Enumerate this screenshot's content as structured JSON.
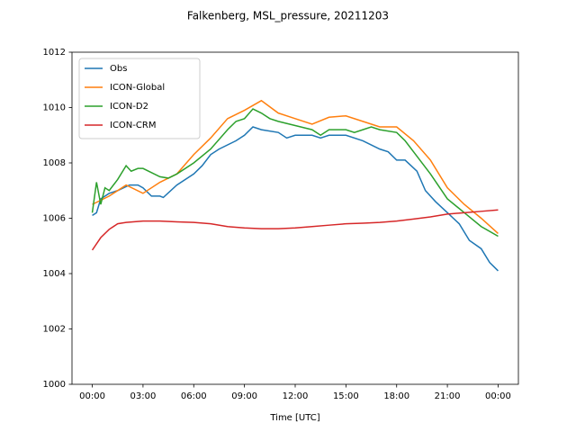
{
  "chart_data": {
    "type": "line",
    "title": "Falkenberg, MSL_pressure, 20211203",
    "x_label": "Time [UTC]",
    "xlim": [
      -1.2,
      25.2
    ],
    "ylim": [
      1000,
      1012
    ],
    "xticks": [
      {
        "value": 0,
        "label": "00:00"
      },
      {
        "value": 3,
        "label": "03:00"
      },
      {
        "value": 6,
        "label": "06:00"
      },
      {
        "value": 9,
        "label": "09:00"
      },
      {
        "value": 12,
        "label": "12:00"
      },
      {
        "value": 15,
        "label": "15:00"
      },
      {
        "value": 18,
        "label": "18:00"
      },
      {
        "value": 21,
        "label": "21:00"
      },
      {
        "value": 24,
        "label": "00:00"
      }
    ],
    "yticks": [
      1000,
      1002,
      1004,
      1006,
      1008,
      1010,
      1012
    ],
    "legend": "upper left",
    "grid": false,
    "series": [
      {
        "name": "Obs",
        "color": "#1f77b4",
        "x": [
          0,
          0.25,
          0.5,
          1,
          1.5,
          2.2,
          2.7,
          3,
          3.5,
          4,
          4.2,
          5,
          6,
          6.5,
          7,
          7.5,
          8.5,
          9,
          9.5,
          10,
          11,
          11.5,
          12,
          13,
          13.5,
          14,
          15,
          16,
          17,
          17.5,
          18,
          18.5,
          19.2,
          19.7,
          20.3,
          21,
          21.7,
          22.3,
          23,
          23.5,
          24
        ],
        "values": [
          1006.1,
          1006.2,
          1006.7,
          1006.9,
          1007.0,
          1007.2,
          1007.2,
          1007.1,
          1006.8,
          1006.8,
          1006.75,
          1007.2,
          1007.6,
          1007.9,
          1008.3,
          1008.5,
          1008.8,
          1009.0,
          1009.3,
          1009.2,
          1009.1,
          1008.9,
          1009.0,
          1009.0,
          1008.9,
          1009.0,
          1009.0,
          1008.8,
          1008.5,
          1008.4,
          1008.1,
          1008.1,
          1007.7,
          1007.0,
          1006.6,
          1006.2,
          1005.8,
          1005.2,
          1004.9,
          1004.4,
          1004.1
        ]
      },
      {
        "name": "ICON-Global",
        "color": "#ff7f0e",
        "x": [
          0,
          1,
          2,
          3,
          4,
          5,
          6,
          7,
          8,
          9,
          10,
          11,
          12,
          13,
          14,
          15,
          16,
          17,
          18,
          19,
          20,
          21,
          22,
          23,
          24
        ],
        "values": [
          1006.5,
          1006.8,
          1007.2,
          1006.9,
          1007.3,
          1007.6,
          1008.3,
          1008.9,
          1009.6,
          1009.9,
          1010.25,
          1009.8,
          1009.6,
          1009.4,
          1009.65,
          1009.7,
          1009.5,
          1009.3,
          1009.3,
          1008.8,
          1008.1,
          1007.1,
          1006.5,
          1006.0,
          1005.45
        ]
      },
      {
        "name": "ICON-D2",
        "color": "#2ca02c",
        "x": [
          0,
          0.25,
          0.5,
          0.75,
          1,
          1.5,
          2,
          2.3,
          2.7,
          3,
          4,
          4.5,
          5,
          6,
          7,
          8,
          8.5,
          9,
          9.5,
          10,
          10.5,
          11,
          12,
          13,
          13.5,
          14,
          15,
          15.5,
          16,
          16.5,
          17,
          18,
          18.5,
          19,
          20,
          21,
          22,
          23,
          24
        ],
        "values": [
          1006.2,
          1007.3,
          1006.5,
          1007.1,
          1007.0,
          1007.4,
          1007.9,
          1007.7,
          1007.8,
          1007.8,
          1007.5,
          1007.45,
          1007.6,
          1008.0,
          1008.5,
          1009.2,
          1009.5,
          1009.6,
          1009.95,
          1009.8,
          1009.6,
          1009.5,
          1009.35,
          1009.2,
          1009.0,
          1009.2,
          1009.2,
          1009.1,
          1009.2,
          1009.3,
          1009.2,
          1009.1,
          1008.8,
          1008.4,
          1007.6,
          1006.7,
          1006.2,
          1005.7,
          1005.35
        ]
      },
      {
        "name": "ICON-CRM",
        "color": "#d62728",
        "x": [
          0,
          0.5,
          1,
          1.5,
          2,
          3,
          4,
          5,
          6,
          7,
          8,
          9,
          10,
          11,
          12,
          13,
          14,
          15,
          16,
          17,
          18,
          19,
          20,
          21,
          22,
          23,
          24
        ],
        "values": [
          1004.85,
          1005.3,
          1005.6,
          1005.8,
          1005.85,
          1005.9,
          1005.9,
          1005.87,
          1005.85,
          1005.8,
          1005.7,
          1005.65,
          1005.62,
          1005.62,
          1005.65,
          1005.7,
          1005.75,
          1005.8,
          1005.82,
          1005.85,
          1005.9,
          1005.97,
          1006.05,
          1006.15,
          1006.2,
          1006.25,
          1006.3
        ]
      }
    ]
  }
}
